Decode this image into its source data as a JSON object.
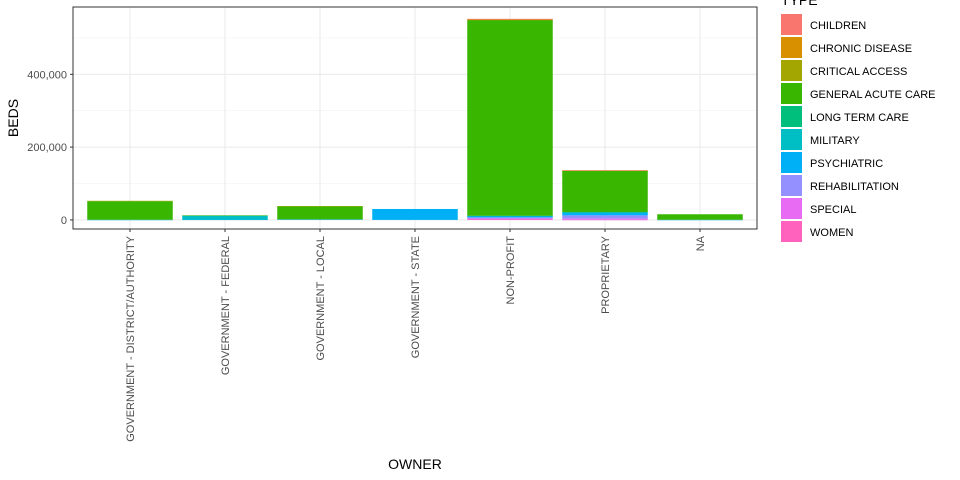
{
  "chart_data": {
    "type": "bar",
    "stacked": true,
    "xlabel": "OWNER",
    "ylabel": "BEDS",
    "legend_title": "TYPE",
    "legend_position": "right",
    "grid": true,
    "ylim": [
      -25000,
      585000
    ],
    "y_ticks": [
      0,
      200000,
      400000
    ],
    "y_tick_labels": [
      "0",
      "200,000",
      "400,000"
    ],
    "categories": [
      "GOVERNMENT - DISTRICT/AUTHORITY",
      "GOVERNMENT - FEDERAL",
      "GOVERNMENT - LOCAL",
      "GOVERNMENT - STATE",
      "NON-PROFIT",
      "PROPRIETARY",
      "NA"
    ],
    "series": [
      {
        "name": "CHILDREN",
        "color": "#F8766D",
        "values": [
          0,
          0,
          0,
          0,
          2000,
          500,
          0
        ]
      },
      {
        "name": "CHRONIC DISEASE",
        "color": "#D89000",
        "values": [
          0,
          0,
          0,
          0,
          500,
          500,
          0
        ]
      },
      {
        "name": "CRITICAL ACCESS",
        "color": "#A3A500",
        "values": [
          1000,
          0,
          500,
          0,
          500,
          0,
          0
        ]
      },
      {
        "name": "GENERAL ACUTE CARE",
        "color": "#39B600",
        "values": [
          51000,
          500,
          36000,
          0,
          538000,
          114000,
          15000
        ]
      },
      {
        "name": "LONG TERM CARE",
        "color": "#00BF7D",
        "values": [
          0,
          0,
          0,
          0,
          500,
          1000,
          0
        ]
      },
      {
        "name": "MILITARY",
        "color": "#00BFC4",
        "values": [
          0,
          11000,
          0,
          0,
          0,
          0,
          0
        ]
      },
      {
        "name": "PSYCHIATRIC",
        "color": "#00B0F6",
        "values": [
          500,
          1000,
          1500,
          30000,
          4000,
          8000,
          500
        ]
      },
      {
        "name": "REHABILITATION",
        "color": "#9590FF",
        "values": [
          0,
          0,
          0,
          0,
          3000,
          9000,
          0
        ]
      },
      {
        "name": "SPECIAL",
        "color": "#E76BF3",
        "values": [
          0,
          0,
          0,
          0,
          3000,
          3000,
          0
        ]
      },
      {
        "name": "WOMEN",
        "color": "#FF62BC",
        "values": [
          0,
          0,
          0,
          0,
          1000,
          500,
          0
        ]
      }
    ]
  }
}
